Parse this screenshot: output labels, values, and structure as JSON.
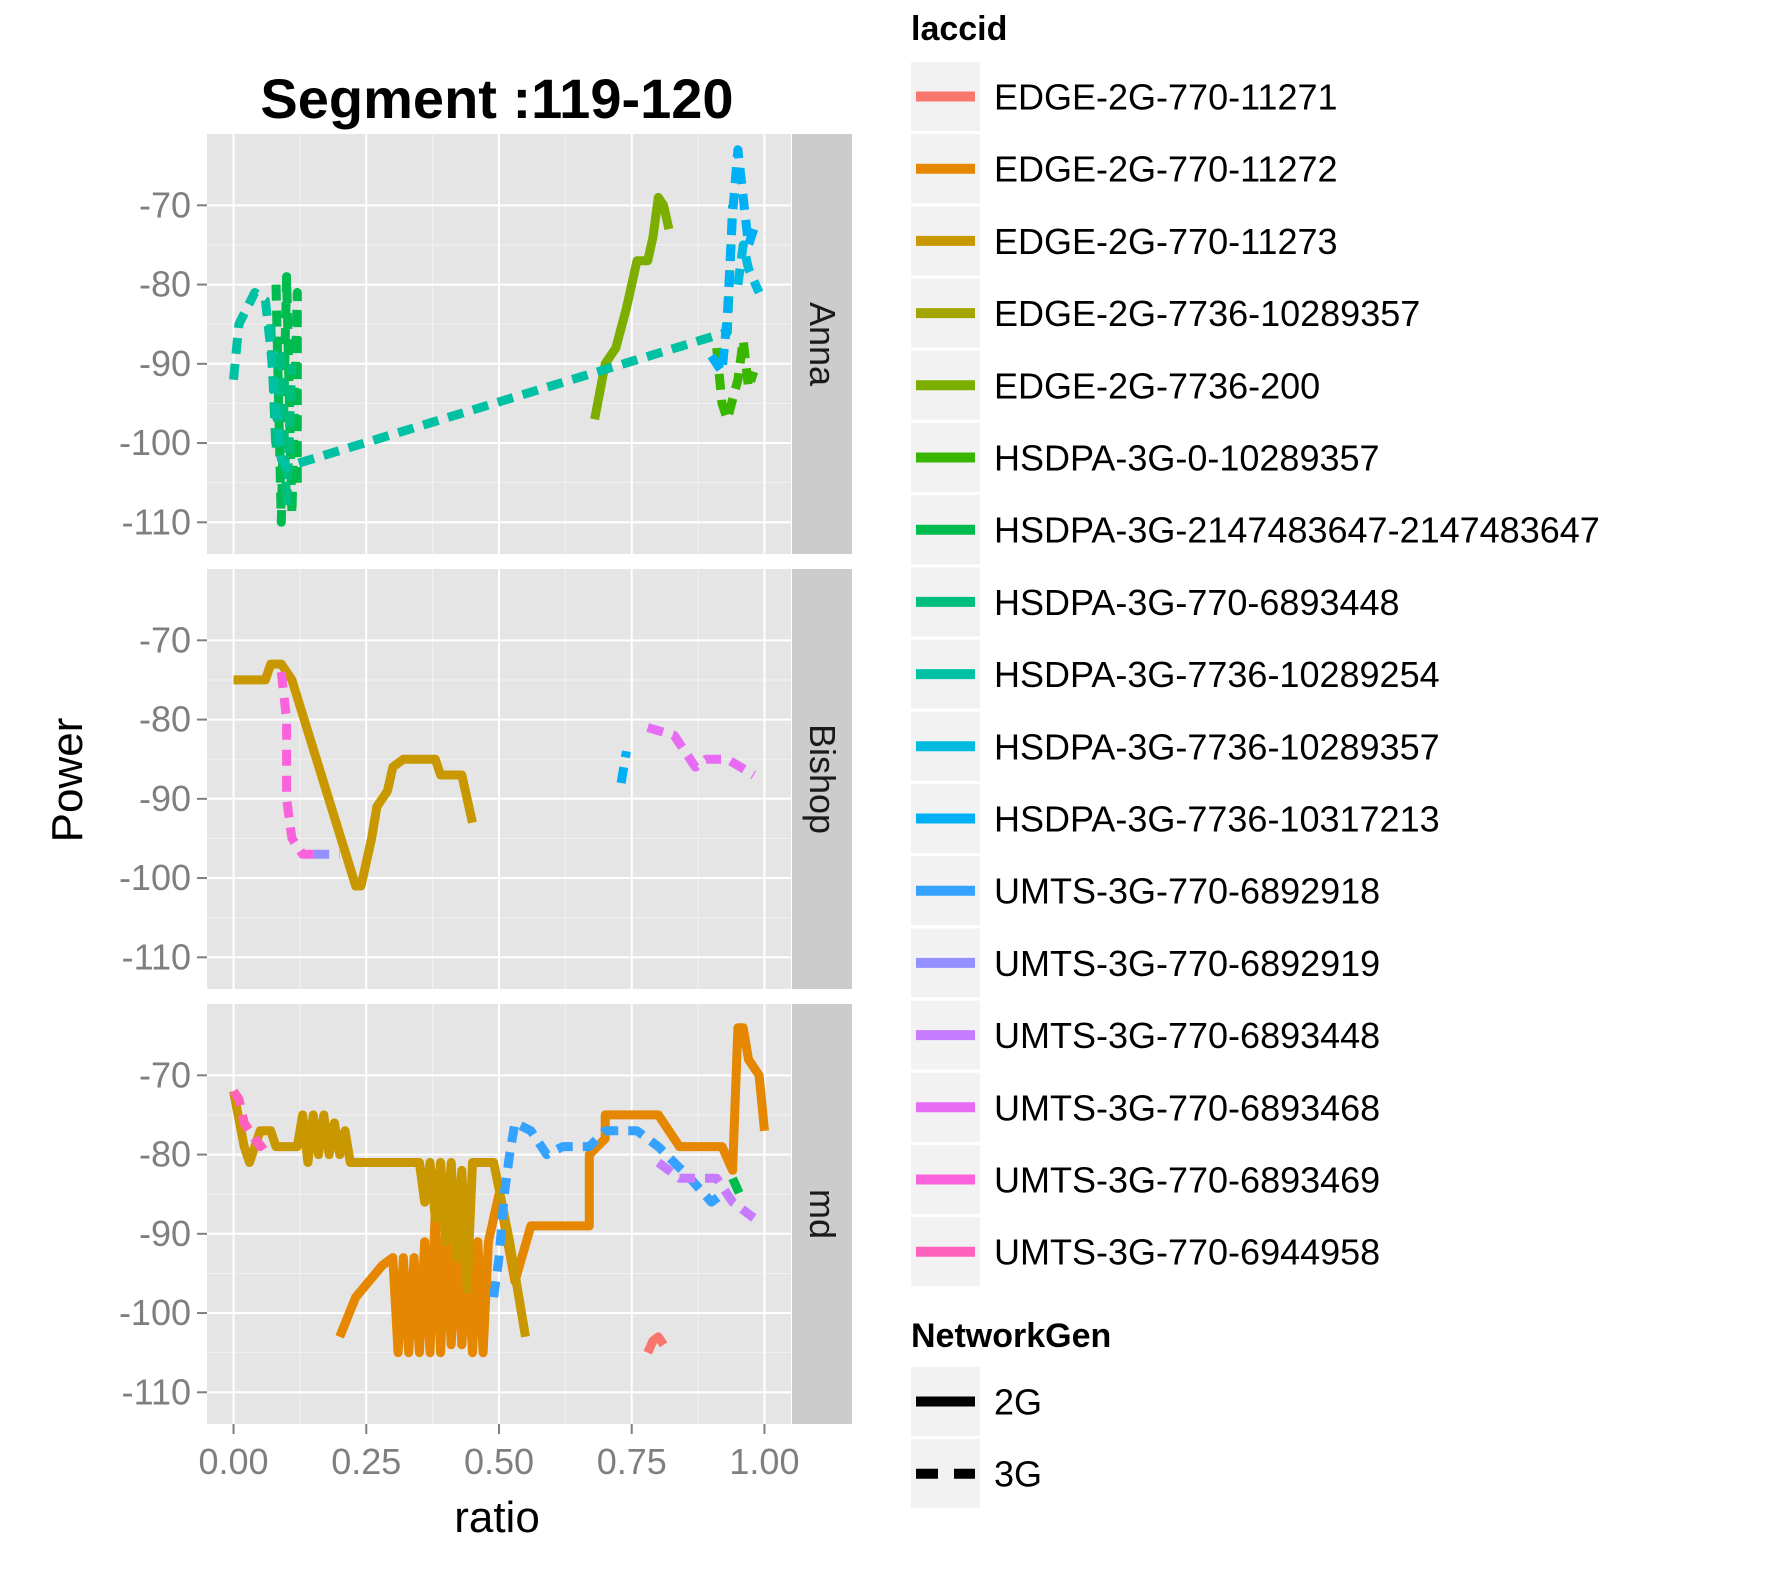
{
  "chart_data": {
    "type": "line",
    "title": "Segment :119-120",
    "xlabel": "ratio",
    "ylabel": "Power",
    "xlim": [
      -0.05,
      1.05
    ],
    "ylim": [
      -114,
      -61
    ],
    "xticks": [
      "0.00",
      "0.25",
      "0.50",
      "0.75",
      "1.00"
    ],
    "xtick_values": [
      0,
      0.25,
      0.5,
      0.75,
      1.0
    ],
    "yticks": [
      "-70",
      "-80",
      "-90",
      "-100",
      "-110"
    ],
    "ytick_values": [
      -70,
      -80,
      -90,
      -100,
      -110
    ],
    "facets": [
      "Anna",
      "Bishop",
      "md"
    ],
    "grid": true,
    "legend_position": "right",
    "legend_color_title": "laccid",
    "legend_linetype_title": "NetworkGen",
    "linetypes": [
      {
        "name": "2G",
        "dash": "solid"
      },
      {
        "name": "3G",
        "dash": "dashed"
      }
    ],
    "series": [
      {
        "name": "EDGE-2G-770-11271",
        "color": "#F8766D",
        "gen": "2G",
        "points": {
          "md": [
            [
              0.78,
              -105
            ],
            [
              0.79,
              -103.5
            ],
            [
              0.8,
              -103
            ],
            [
              0.81,
              -104
            ]
          ]
        }
      },
      {
        "name": "EDGE-2G-770-11272",
        "color": "#E58700",
        "gen": "2G",
        "points": {
          "md": [
            [
              0.2,
              -103
            ],
            [
              0.23,
              -98
            ],
            [
              0.28,
              -94
            ],
            [
              0.3,
              -93
            ],
            [
              0.31,
              -105
            ],
            [
              0.32,
              -93
            ],
            [
              0.33,
              -105
            ],
            [
              0.34,
              -93
            ],
            [
              0.35,
              -105
            ],
            [
              0.36,
              -91
            ],
            [
              0.37,
              -105
            ],
            [
              0.38,
              -87
            ],
            [
              0.39,
              -105
            ],
            [
              0.4,
              -89
            ],
            [
              0.41,
              -104
            ],
            [
              0.42,
              -90
            ],
            [
              0.43,
              -104
            ],
            [
              0.44,
              -93
            ],
            [
              0.45,
              -105
            ],
            [
              0.46,
              -91
            ],
            [
              0.47,
              -105
            ],
            [
              0.48,
              -91
            ],
            [
              0.5,
              -85
            ],
            [
              0.53,
              -96
            ],
            [
              0.56,
              -89
            ],
            [
              0.67,
              -89
            ],
            [
              0.67,
              -80
            ],
            [
              0.7,
              -78
            ],
            [
              0.7,
              -75
            ],
            [
              0.8,
              -75
            ],
            [
              0.84,
              -79
            ],
            [
              0.92,
              -79
            ],
            [
              0.94,
              -82
            ],
            [
              0.95,
              -64
            ],
            [
              0.96,
              -64
            ],
            [
              0.97,
              -68
            ],
            [
              0.99,
              -70
            ],
            [
              1.0,
              -77
            ]
          ]
        }
      },
      {
        "name": "EDGE-2G-770-11273",
        "color": "#C99800",
        "gen": "2G",
        "points": {
          "Bishop": [
            [
              0.0,
              -75
            ],
            [
              0.06,
              -75
            ],
            [
              0.07,
              -73
            ],
            [
              0.09,
              -73
            ],
            [
              0.11,
              -75
            ],
            [
              0.23,
              -101
            ],
            [
              0.24,
              -101
            ],
            [
              0.26,
              -95
            ],
            [
              0.27,
              -91
            ],
            [
              0.29,
              -89
            ],
            [
              0.3,
              -86
            ],
            [
              0.32,
              -85
            ],
            [
              0.38,
              -85
            ],
            [
              0.39,
              -87
            ],
            [
              0.43,
              -87
            ],
            [
              0.44,
              -90
            ],
            [
              0.45,
              -93
            ]
          ],
          "md": [
            [
              0.0,
              -72
            ],
            [
              0.02,
              -79
            ],
            [
              0.03,
              -81
            ],
            [
              0.05,
              -77
            ],
            [
              0.07,
              -77
            ],
            [
              0.08,
              -79
            ],
            [
              0.12,
              -79
            ],
            [
              0.13,
              -75
            ],
            [
              0.14,
              -81
            ],
            [
              0.15,
              -75
            ],
            [
              0.16,
              -80
            ],
            [
              0.17,
              -75
            ],
            [
              0.18,
              -80
            ],
            [
              0.19,
              -76
            ],
            [
              0.2,
              -80
            ],
            [
              0.21,
              -77
            ],
            [
              0.22,
              -81
            ],
            [
              0.35,
              -81
            ],
            [
              0.36,
              -86
            ],
            [
              0.37,
              -81
            ],
            [
              0.38,
              -88
            ],
            [
              0.39,
              -81
            ],
            [
              0.4,
              -91
            ],
            [
              0.41,
              -81
            ],
            [
              0.42,
              -93
            ],
            [
              0.43,
              -82
            ],
            [
              0.44,
              -97
            ],
            [
              0.45,
              -81
            ],
            [
              0.49,
              -81
            ],
            [
              0.52,
              -91
            ],
            [
              0.55,
              -103
            ]
          ]
        }
      },
      {
        "name": "EDGE-2G-7736-10289357",
        "color": "#A3A500",
        "gen": "2G",
        "points": {}
      },
      {
        "name": "EDGE-2G-7736-200",
        "color": "#7CAE00",
        "gen": "2G",
        "points": {
          "Anna": [
            [
              0.68,
              -97
            ],
            [
              0.7,
              -90
            ],
            [
              0.72,
              -88
            ],
            [
              0.74,
              -83
            ],
            [
              0.76,
              -77
            ],
            [
              0.78,
              -77
            ],
            [
              0.79,
              -74
            ],
            [
              0.8,
              -69
            ],
            [
              0.81,
              -70
            ],
            [
              0.82,
              -73
            ]
          ]
        }
      },
      {
        "name": "HSDPA-3G-0-10289357",
        "color": "#39B600",
        "gen": "3G",
        "points": {
          "Anna": [
            [
              0.91,
              -88
            ],
            [
              0.92,
              -95
            ],
            [
              0.93,
              -97
            ],
            [
              0.95,
              -92
            ],
            [
              0.96,
              -87
            ],
            [
              0.97,
              -93
            ],
            [
              0.98,
              -91
            ]
          ]
        }
      },
      {
        "name": "HSDPA-3G-2147483647-2147483647",
        "color": "#00BB4E",
        "gen": "3G",
        "points": {
          "Anna": [
            [
              0.08,
              -80
            ],
            [
              0.09,
              -110
            ],
            [
              0.1,
              -79
            ],
            [
              0.11,
              -109
            ],
            [
              0.12,
              -81
            ],
            [
              0.12,
              -105
            ]
          ],
          "md": [
            [
              0.94,
              -83
            ],
            [
              0.96,
              -86
            ]
          ]
        }
      },
      {
        "name": "HSDPA-3G-770-6893448",
        "color": "#00BF7D",
        "gen": "3G",
        "points": {
          "Anna": [
            [
              0.07,
              -85
            ],
            [
              0.08,
              -101
            ],
            [
              0.09,
              -88
            ],
            [
              0.1,
              -108
            ],
            [
              0.11,
              -90
            ]
          ]
        }
      },
      {
        "name": "HSDPA-3G-7736-10289254",
        "color": "#00C1A3",
        "gen": "3G",
        "points": {
          "Anna": [
            [
              0.0,
              -92
            ],
            [
              0.01,
              -85
            ],
            [
              0.04,
              -81
            ],
            [
              0.06,
              -82
            ],
            [
              0.07,
              -88
            ],
            [
              0.08,
              -96
            ],
            [
              0.09,
              -102
            ],
            [
              0.1,
              -103
            ],
            [
              0.93,
              -86
            ],
            [
              0.94,
              -70
            ]
          ]
        }
      },
      {
        "name": "HSDPA-3G-7736-10289357",
        "color": "#00BAE0",
        "gen": "3G",
        "points": {
          "Anna": [
            [
              0.95,
              -80
            ],
            [
              0.96,
              -75
            ],
            [
              0.97,
              -78
            ],
            [
              0.99,
              -81
            ]
          ]
        }
      },
      {
        "name": "HSDPA-3G-7736-10317213",
        "color": "#00B0F6",
        "gen": "3G",
        "points": {
          "Anna": [
            [
              0.9,
              -89
            ],
            [
              0.92,
              -91
            ],
            [
              0.93,
              -84
            ],
            [
              0.94,
              -71
            ],
            [
              0.95,
              -63
            ],
            [
              0.96,
              -69
            ],
            [
              0.97,
              -75
            ],
            [
              0.98,
              -73
            ]
          ],
          "Bishop": [
            [
              0.73,
              -88
            ],
            [
              0.74,
              -84
            ]
          ]
        }
      },
      {
        "name": "UMTS-3G-770-6892918",
        "color": "#35A2FF",
        "gen": "3G",
        "points": {
          "md": [
            [
              0.49,
              -98
            ],
            [
              0.5,
              -93
            ],
            [
              0.51,
              -85
            ],
            [
              0.52,
              -80
            ],
            [
              0.53,
              -76
            ],
            [
              0.56,
              -77
            ],
            [
              0.59,
              -80
            ],
            [
              0.62,
              -79
            ],
            [
              0.67,
              -79
            ],
            [
              0.7,
              -77
            ],
            [
              0.76,
              -77
            ],
            [
              0.8,
              -79
            ],
            [
              0.83,
              -81
            ],
            [
              0.86,
              -83
            ],
            [
              0.9,
              -86
            ],
            [
              0.92,
              -85
            ]
          ]
        }
      },
      {
        "name": "UMTS-3G-770-6892919",
        "color": "#9590FF",
        "gen": "3G",
        "points": {
          "Bishop": [
            [
              0.15,
              -97
            ],
            [
              0.2,
              -97
            ]
          ]
        }
      },
      {
        "name": "UMTS-3G-770-6893448",
        "color": "#C77CFF",
        "gen": "3G",
        "points": {
          "md": [
            [
              0.8,
              -81
            ],
            [
              0.84,
              -83
            ],
            [
              0.91,
              -83
            ],
            [
              0.94,
              -86
            ],
            [
              0.96,
              -87
            ],
            [
              0.98,
              -88
            ]
          ]
        }
      },
      {
        "name": "UMTS-3G-770-6893468",
        "color": "#E76BF3",
        "gen": "3G",
        "points": {
          "Bishop": [
            [
              0.78,
              -81
            ],
            [
              0.83,
              -82
            ],
            [
              0.85,
              -84
            ],
            [
              0.87,
              -86
            ],
            [
              0.89,
              -85
            ],
            [
              0.93,
              -85
            ],
            [
              0.98,
              -87
            ]
          ]
        }
      },
      {
        "name": "UMTS-3G-770-6893469",
        "color": "#FA62DB",
        "gen": "3G",
        "points": {
          "Bishop": [
            [
              0.09,
              -74
            ],
            [
              0.1,
              -80
            ],
            [
              0.1,
              -90
            ],
            [
              0.11,
              -95
            ],
            [
              0.13,
              -97
            ],
            [
              0.15,
              -97
            ]
          ]
        }
      },
      {
        "name": "UMTS-3G-770-6944958",
        "color": "#FF62BC",
        "gen": "3G",
        "points": {
          "md": [
            [
              0.0,
              -72
            ],
            [
              0.01,
              -73
            ],
            [
              0.02,
              -76
            ],
            [
              0.05,
              -79
            ],
            [
              0.07,
              -78
            ]
          ]
        }
      }
    ]
  }
}
